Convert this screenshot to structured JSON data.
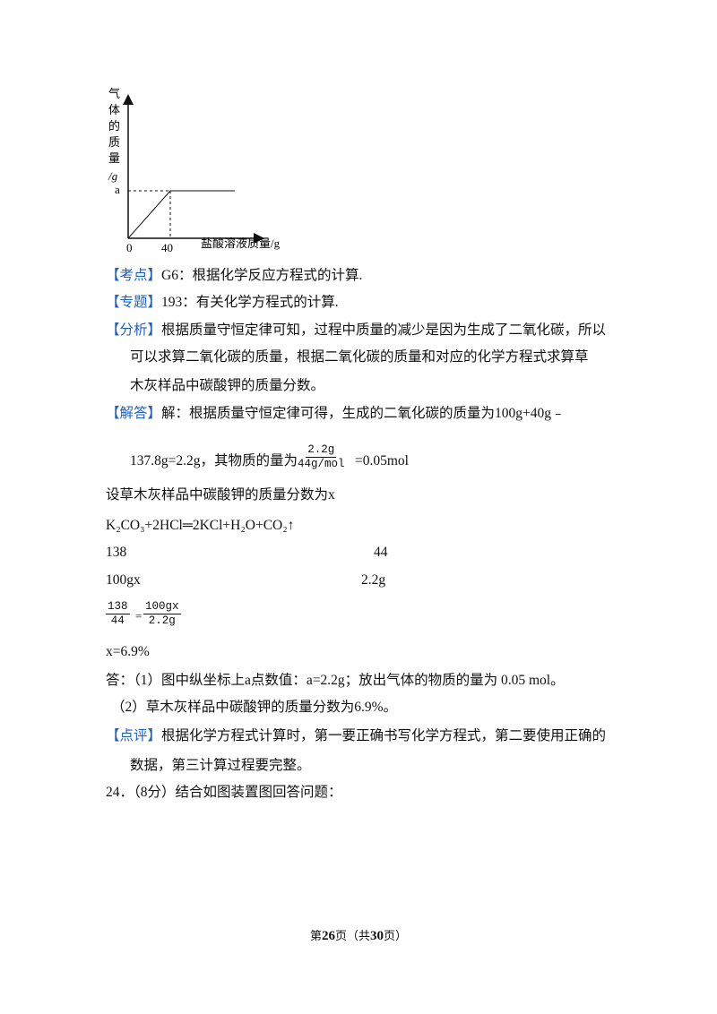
{
  "graph": {
    "y_label": [
      "气",
      "体",
      "的",
      "质",
      "量",
      "/g"
    ],
    "y_tick": "a",
    "origin": "0",
    "x_tick": "40",
    "x_label": "盐酸溶液质量/g"
  },
  "kaodian": {
    "tag": "【考点】",
    "text": "G6：根据化学反应方程式的计算."
  },
  "zhuanti": {
    "tag": "【专题】",
    "text": "193：有关化学方程式的计算."
  },
  "fenxi": {
    "tag": "【分析】",
    "lines": [
      "根据质量守恒定律可知，过程中质量的减少是因为生成了二氧化碳，所以",
      "可以求算二氧化碳的质量，根据二氧化碳的质量和对应的化学方程式求算草",
      "木灰样品中碳酸钾的质量分数。"
    ]
  },
  "jieda": {
    "tag": "【解答】",
    "text": "解：根据质量守恒定律可得，生成的二氧化碳的质量为100g+40g﹣",
    "line2": "137.8g=2.2g，其物质的量为",
    "frac_num": "2.2g",
    "frac_den": "44g/mol",
    "result": "=0.05mol"
  },
  "solution": {
    "assume": "设草木灰样品中碳酸钾的质量分数为x",
    "equation": "K₂CO₃+2HCl═2KCl+H₂O+CO₂↑",
    "row1": [
      "138",
      "44"
    ],
    "row2": [
      "100gx",
      "2.2g"
    ],
    "prop_left": [
      "138",
      "44"
    ],
    "prop_right": [
      "100gx",
      "2.2g"
    ],
    "prop_eq": "=",
    "x": "x=6.9%"
  },
  "answer": [
    "答：（1）图中纵坐标上a点数值：a=2.2g；放出气体的物质的量为 0.05 mol。",
    "（2）草木灰样品中碳酸钾的质量分数为6.9%。"
  ],
  "dianping": {
    "tag": "【点评】",
    "lines": [
      "根据化学方程式计算时，第一要正确书写化学方程式，第二要使用正确的",
      "数据，第三计算过程要完整。"
    ]
  },
  "question": "24．（8分）结合如图装置图回答问题：",
  "footer": [
    "第",
    "26",
    "页（共",
    "30",
    "页）"
  ]
}
